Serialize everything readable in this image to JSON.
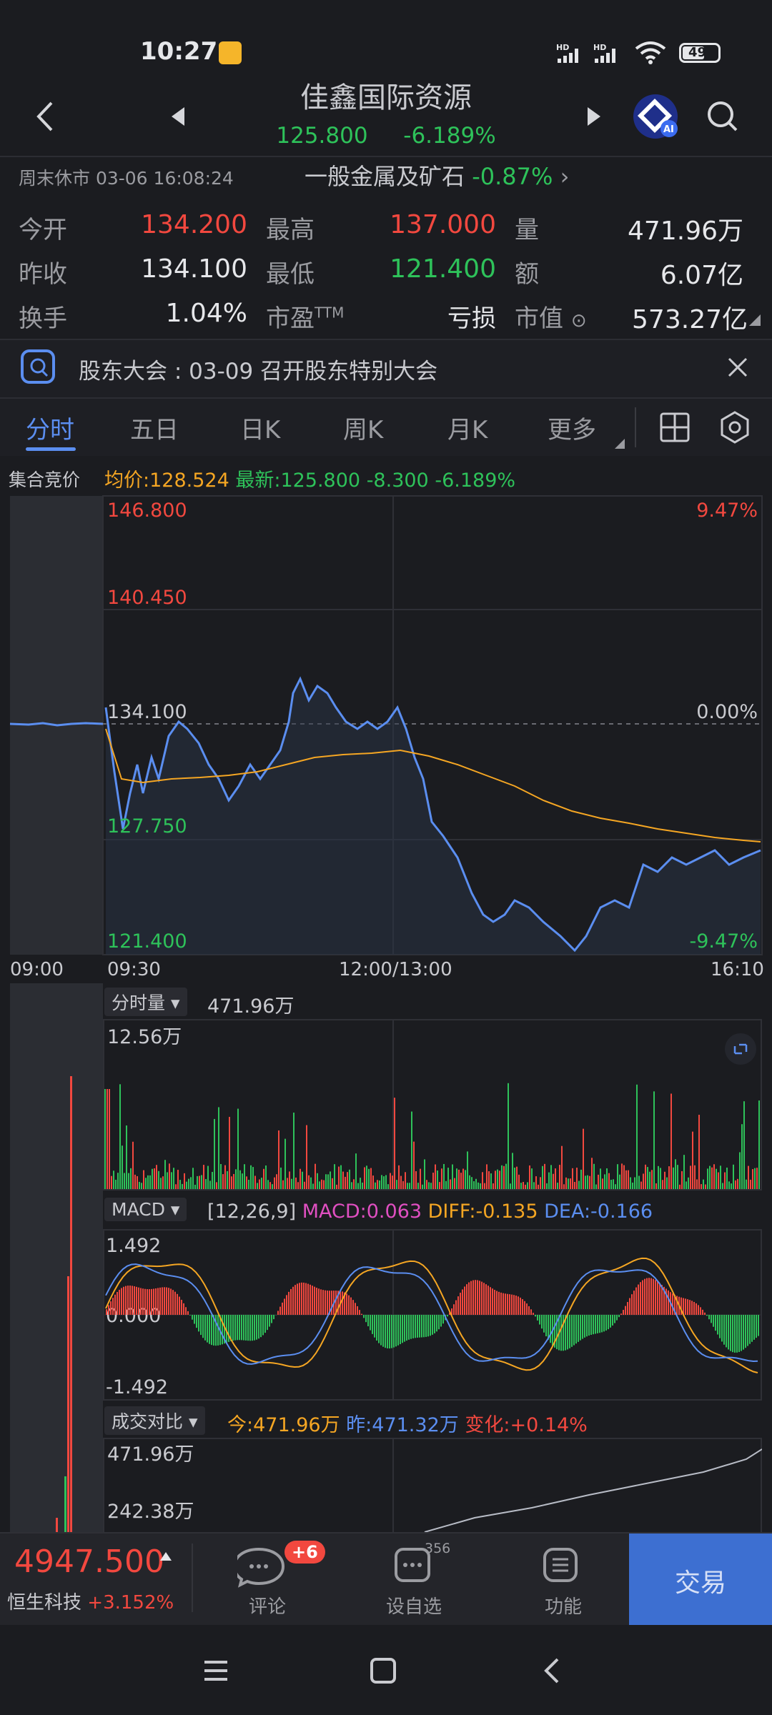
{
  "status_bar": {
    "time": "10:27",
    "battery": "49"
  },
  "header": {
    "title": "佳鑫国际资源",
    "price": "125.800",
    "change_pct": "-6.189%"
  },
  "session": {
    "status": "周末休市 03-06 16:08:24",
    "sector": "一般金属及矿石",
    "sector_change": "-0.87%"
  },
  "stats": {
    "open_label": "今开",
    "open": "134.200",
    "high_label": "最高",
    "high": "137.000",
    "vol_label": "量",
    "vol": "471.96万",
    "prev_label": "昨收",
    "prev": "134.100",
    "low_label": "最低",
    "low": "121.400",
    "amt_label": "额",
    "amt": "6.07亿",
    "turn_label": "换手",
    "turn": "1.04%",
    "pe_label": "市盈",
    "pe_sup": "TTM",
    "pe": "亏损",
    "mcap_label": "市值",
    "mcap": "573.27亿"
  },
  "notice": {
    "text": "股东大会 : 03-09 召开股东特别大会"
  },
  "tabs": [
    "分时",
    "五日",
    "日K",
    "周K",
    "月K",
    "更多"
  ],
  "quote_line": {
    "auction": "集合竞价",
    "avg": "均价:128.524",
    "latest": "最新:125.800",
    "chg": "-8.300",
    "pct": "-6.189%"
  },
  "price_chart": {
    "y_labels": [
      "146.800",
      "140.450",
      "134.100",
      "127.750",
      "121.400"
    ],
    "pct_top": "9.47%",
    "pct_mid": "0.00%",
    "pct_bottom": "-9.47%",
    "time_labels": [
      "09:00",
      "09:30",
      "12:00/13:00",
      "16:10"
    ]
  },
  "volume": {
    "selector": "分时量",
    "total": "471.96万",
    "max_label": "12.56万"
  },
  "macd": {
    "selector": "MACD",
    "params": "[12,26,9]",
    "macd": "MACD:0.063",
    "diff": "DIFF:-0.135",
    "dea": "DEA:-0.166",
    "top": "1.492",
    "mid": "0.000",
    "bottom": "-1.492"
  },
  "compare": {
    "selector": "成交对比",
    "today": "今:471.96万",
    "yesterday": "昨:471.32万",
    "change": "变化:+0.14%",
    "top": "471.96万",
    "mid": "242.38万"
  },
  "footer": {
    "index_value": "4947.500",
    "index_name": "恒生科技",
    "index_change": "+3.152%",
    "comment_label": "评论",
    "comment_badge": "+6",
    "watch_label": "设自选",
    "watch_count": "356",
    "func_label": "功能",
    "trade_label": "交易"
  },
  "colors": {
    "background": "#1b1c20",
    "up": "#f2483f",
    "down": "#2ec25a",
    "price_line": "#5b8ef0",
    "avg_line": "#f5a623",
    "trade_button": "#3d6fd1"
  }
}
